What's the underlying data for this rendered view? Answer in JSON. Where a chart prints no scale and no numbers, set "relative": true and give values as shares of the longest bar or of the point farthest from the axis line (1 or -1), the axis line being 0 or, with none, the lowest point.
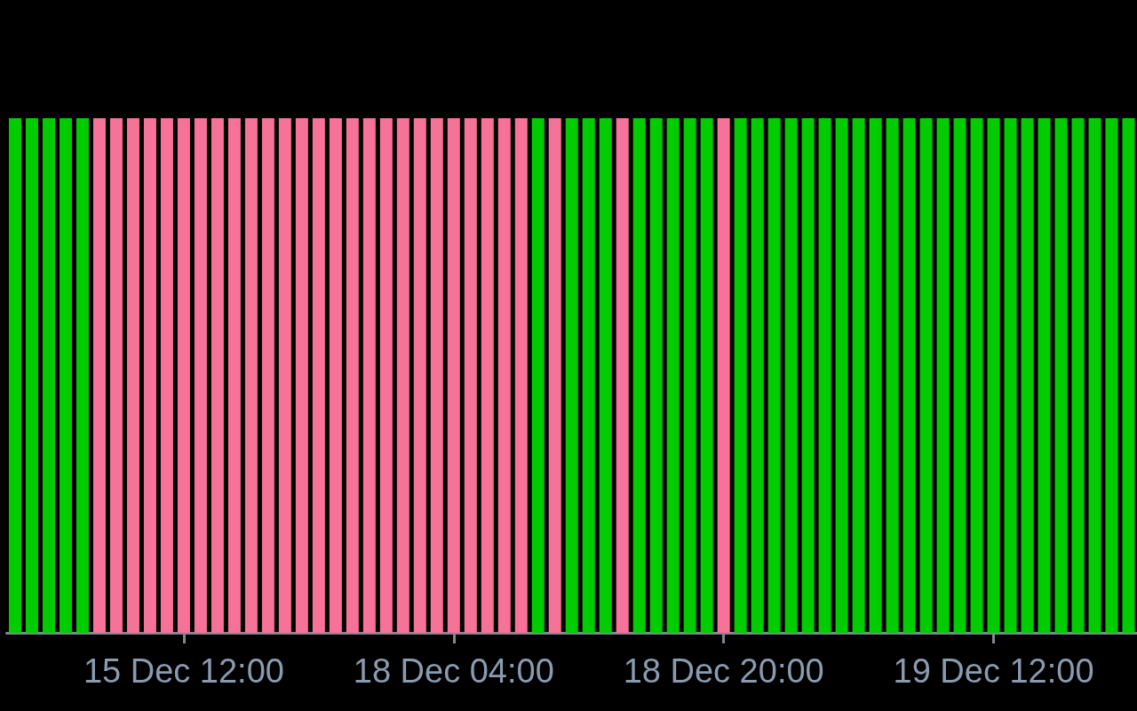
{
  "chart_data": {
    "type": "bar",
    "relative": true,
    "categories": [
      null,
      null,
      null,
      null,
      null,
      null,
      null,
      null,
      null,
      null,
      "15 Dec 12:00",
      null,
      null,
      null,
      null,
      null,
      null,
      null,
      null,
      null,
      null,
      null,
      null,
      null,
      null,
      null,
      "18 Dec 04:00",
      null,
      null,
      null,
      null,
      null,
      null,
      null,
      null,
      null,
      null,
      null,
      null,
      null,
      null,
      null,
      "18 Dec 20:00",
      null,
      null,
      null,
      null,
      null,
      null,
      null,
      null,
      null,
      null,
      null,
      null,
      null,
      null,
      null,
      "19 Dec 12:00",
      null,
      null,
      null,
      null,
      null,
      null,
      null,
      null
    ],
    "values": [
      1,
      1,
      1,
      1,
      1,
      1,
      1,
      1,
      1,
      1,
      1,
      1,
      1,
      1,
      1,
      1,
      1,
      1,
      1,
      1,
      1,
      1,
      1,
      1,
      1,
      1,
      1,
      1,
      1,
      1,
      1,
      1,
      1,
      1,
      1,
      1,
      1,
      1,
      1,
      1,
      1,
      1,
      1,
      1,
      1,
      1,
      1,
      1,
      1,
      1,
      1,
      1,
      1,
      1,
      1,
      1,
      1,
      1,
      1,
      1,
      1,
      1,
      1,
      1,
      1,
      1,
      1
    ],
    "colors": [
      "#00cc00",
      "#00cc00",
      "#00cc00",
      "#00cc00",
      "#00cc00",
      "#f77298",
      "#f77298",
      "#f77298",
      "#f77298",
      "#f77298",
      "#f77298",
      "#f77298",
      "#f77298",
      "#f77298",
      "#f77298",
      "#f77298",
      "#f77298",
      "#f77298",
      "#f77298",
      "#f77298",
      "#f77298",
      "#f77298",
      "#f77298",
      "#f77298",
      "#f77298",
      "#f77298",
      "#f77298",
      "#f77298",
      "#f77298",
      "#f77298",
      "#f77298",
      "#00cc00",
      "#f77298",
      "#00cc00",
      "#00cc00",
      "#00cc00",
      "#f77298",
      "#00cc00",
      "#00cc00",
      "#00cc00",
      "#00cc00",
      "#00cc00",
      "#f77298",
      "#00cc00",
      "#00cc00",
      "#00cc00",
      "#00cc00",
      "#00cc00",
      "#00cc00",
      "#00cc00",
      "#00cc00",
      "#00cc00",
      "#00cc00",
      "#00cc00",
      "#00cc00",
      "#00cc00",
      "#00cc00",
      "#00cc00",
      "#00cc00",
      "#00cc00",
      "#00cc00",
      "#00cc00",
      "#00cc00",
      "#00cc00",
      "#00cc00",
      "#00cc00",
      "#00cc00"
    ]
  }
}
